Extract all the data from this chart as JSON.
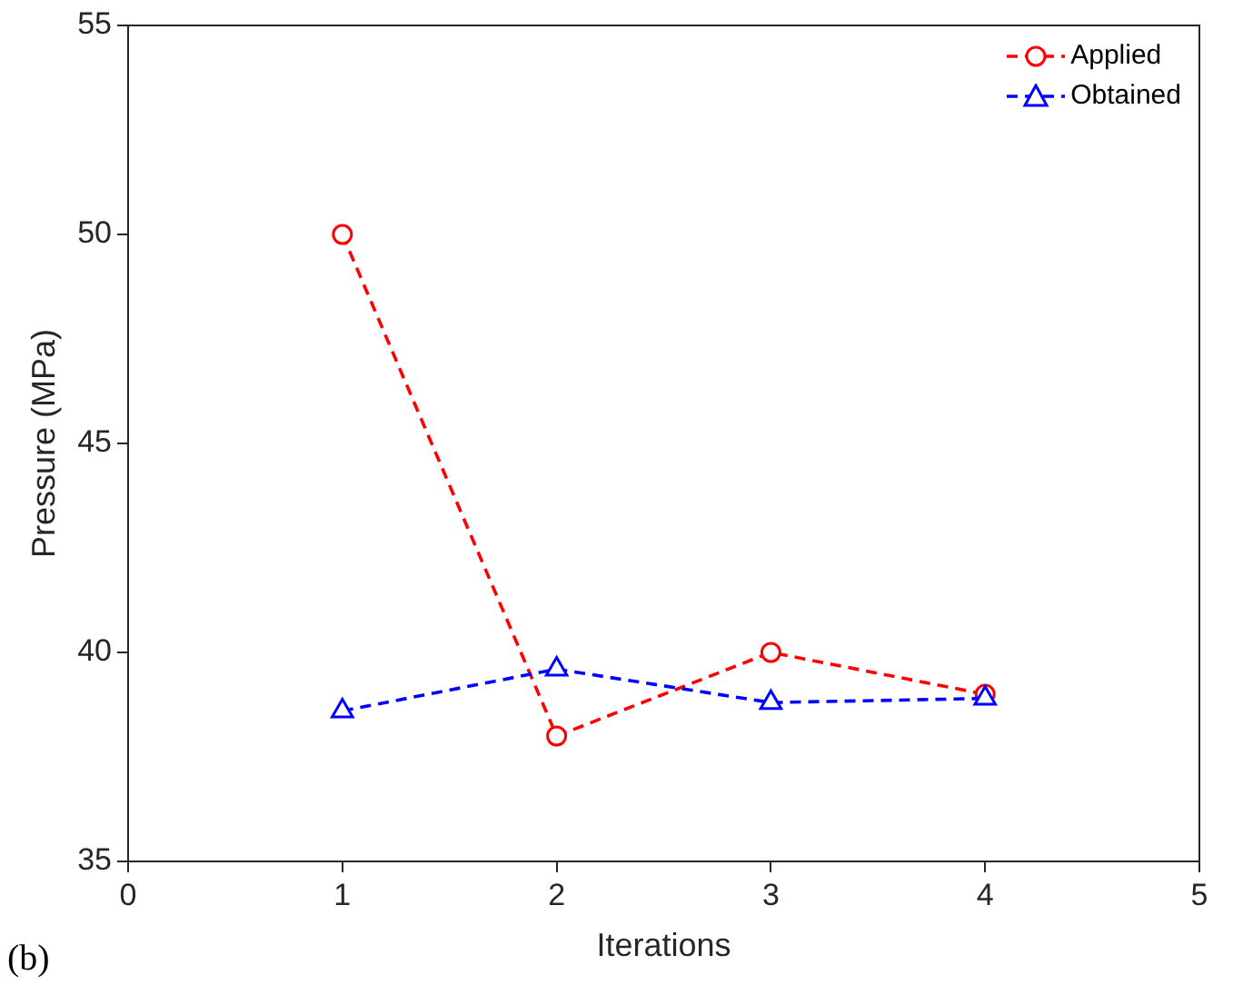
{
  "chart_data": {
    "type": "line",
    "xlabel": "Iterations",
    "ylabel": "Pressure (MPa)",
    "x": [
      1,
      2,
      3,
      4
    ],
    "series": [
      {
        "name": "Applied",
        "color": "#ff0000",
        "values": [
          50,
          38,
          40,
          39
        ],
        "marker": "circle"
      },
      {
        "name": "Obtained",
        "color": "#0000ff",
        "values": [
          38.6,
          39.6,
          38.8,
          38.9
        ],
        "marker": "triangle"
      }
    ],
    "xlim": [
      0,
      5
    ],
    "xticks": [
      0,
      1,
      2,
      3,
      4,
      5
    ],
    "ylim": [
      35,
      55
    ],
    "yticks": [
      35,
      40,
      45,
      50,
      55
    ],
    "line_style": "dashed",
    "legend": "top right",
    "grid": false,
    "annotations": [
      "(b)"
    ]
  }
}
